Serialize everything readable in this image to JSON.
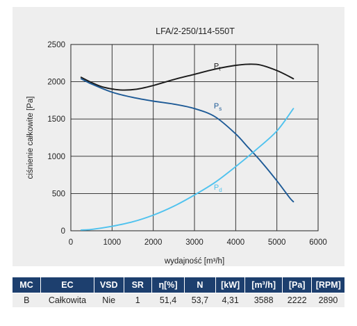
{
  "chart_data": {
    "type": "line",
    "title": "LFA/2-250/114-550T",
    "xlabel": "wydajność [m³/h]",
    "ylabel": "ciśnienie całkowite [Pa]",
    "xlim": [
      0,
      6000
    ],
    "ylim": [
      0,
      2500
    ],
    "x_ticks": [
      "0",
      "1000",
      "2000",
      "3000",
      "4000",
      "5000",
      "6000"
    ],
    "y_ticks": [
      "0",
      "500",
      "1000",
      "1500",
      "2000",
      "2500"
    ],
    "grid": true,
    "series": [
      {
        "name": "Pt",
        "label_main": "P",
        "label_sub": "t",
        "color": "#1a1a1a",
        "label_at": [
          3470,
          2180
        ],
        "x": [
          250,
          500,
          800,
          1200,
          1600,
          2000,
          2500,
          3000,
          3500,
          4000,
          4300,
          4600,
          5000,
          5300,
          5400
        ],
        "y": [
          2060,
          1990,
          1925,
          1890,
          1900,
          1950,
          2030,
          2100,
          2170,
          2220,
          2235,
          2225,
          2150,
          2070,
          2040
        ]
      },
      {
        "name": "Ps",
        "label_main": "P",
        "label_sub": "s",
        "color": "#1d5a96",
        "label_at": [
          3470,
          1640
        ],
        "x": [
          250,
          500,
          1000,
          1500,
          2000,
          2500,
          3000,
          3500,
          4000,
          4300,
          4600,
          5000,
          5300,
          5400
        ],
        "y": [
          2040,
          1970,
          1860,
          1790,
          1740,
          1700,
          1640,
          1530,
          1300,
          1120,
          940,
          670,
          450,
          390
        ]
      },
      {
        "name": "Pd",
        "label_main": "P",
        "label_sub": "d",
        "color": "#4fc2ee",
        "label_at": [
          3470,
          550
        ],
        "x": [
          250,
          500,
          1000,
          1500,
          2000,
          2500,
          3000,
          3500,
          4000,
          4500,
          5000,
          5400
        ],
        "y": [
          10,
          18,
          60,
          120,
          210,
          330,
          480,
          650,
          860,
          1090,
          1340,
          1640
        ]
      }
    ]
  },
  "table": {
    "headers": [
      "MC",
      "EC",
      "VSD",
      "SR",
      "η[%]",
      "N",
      "[kW]",
      "[m³/h]",
      "[Pa]",
      "[RPM]"
    ],
    "row": [
      "B",
      "Całkowita",
      "Nie",
      "1",
      "51,4",
      "53,7",
      "4,31",
      "3588",
      "2222",
      "2890"
    ]
  }
}
